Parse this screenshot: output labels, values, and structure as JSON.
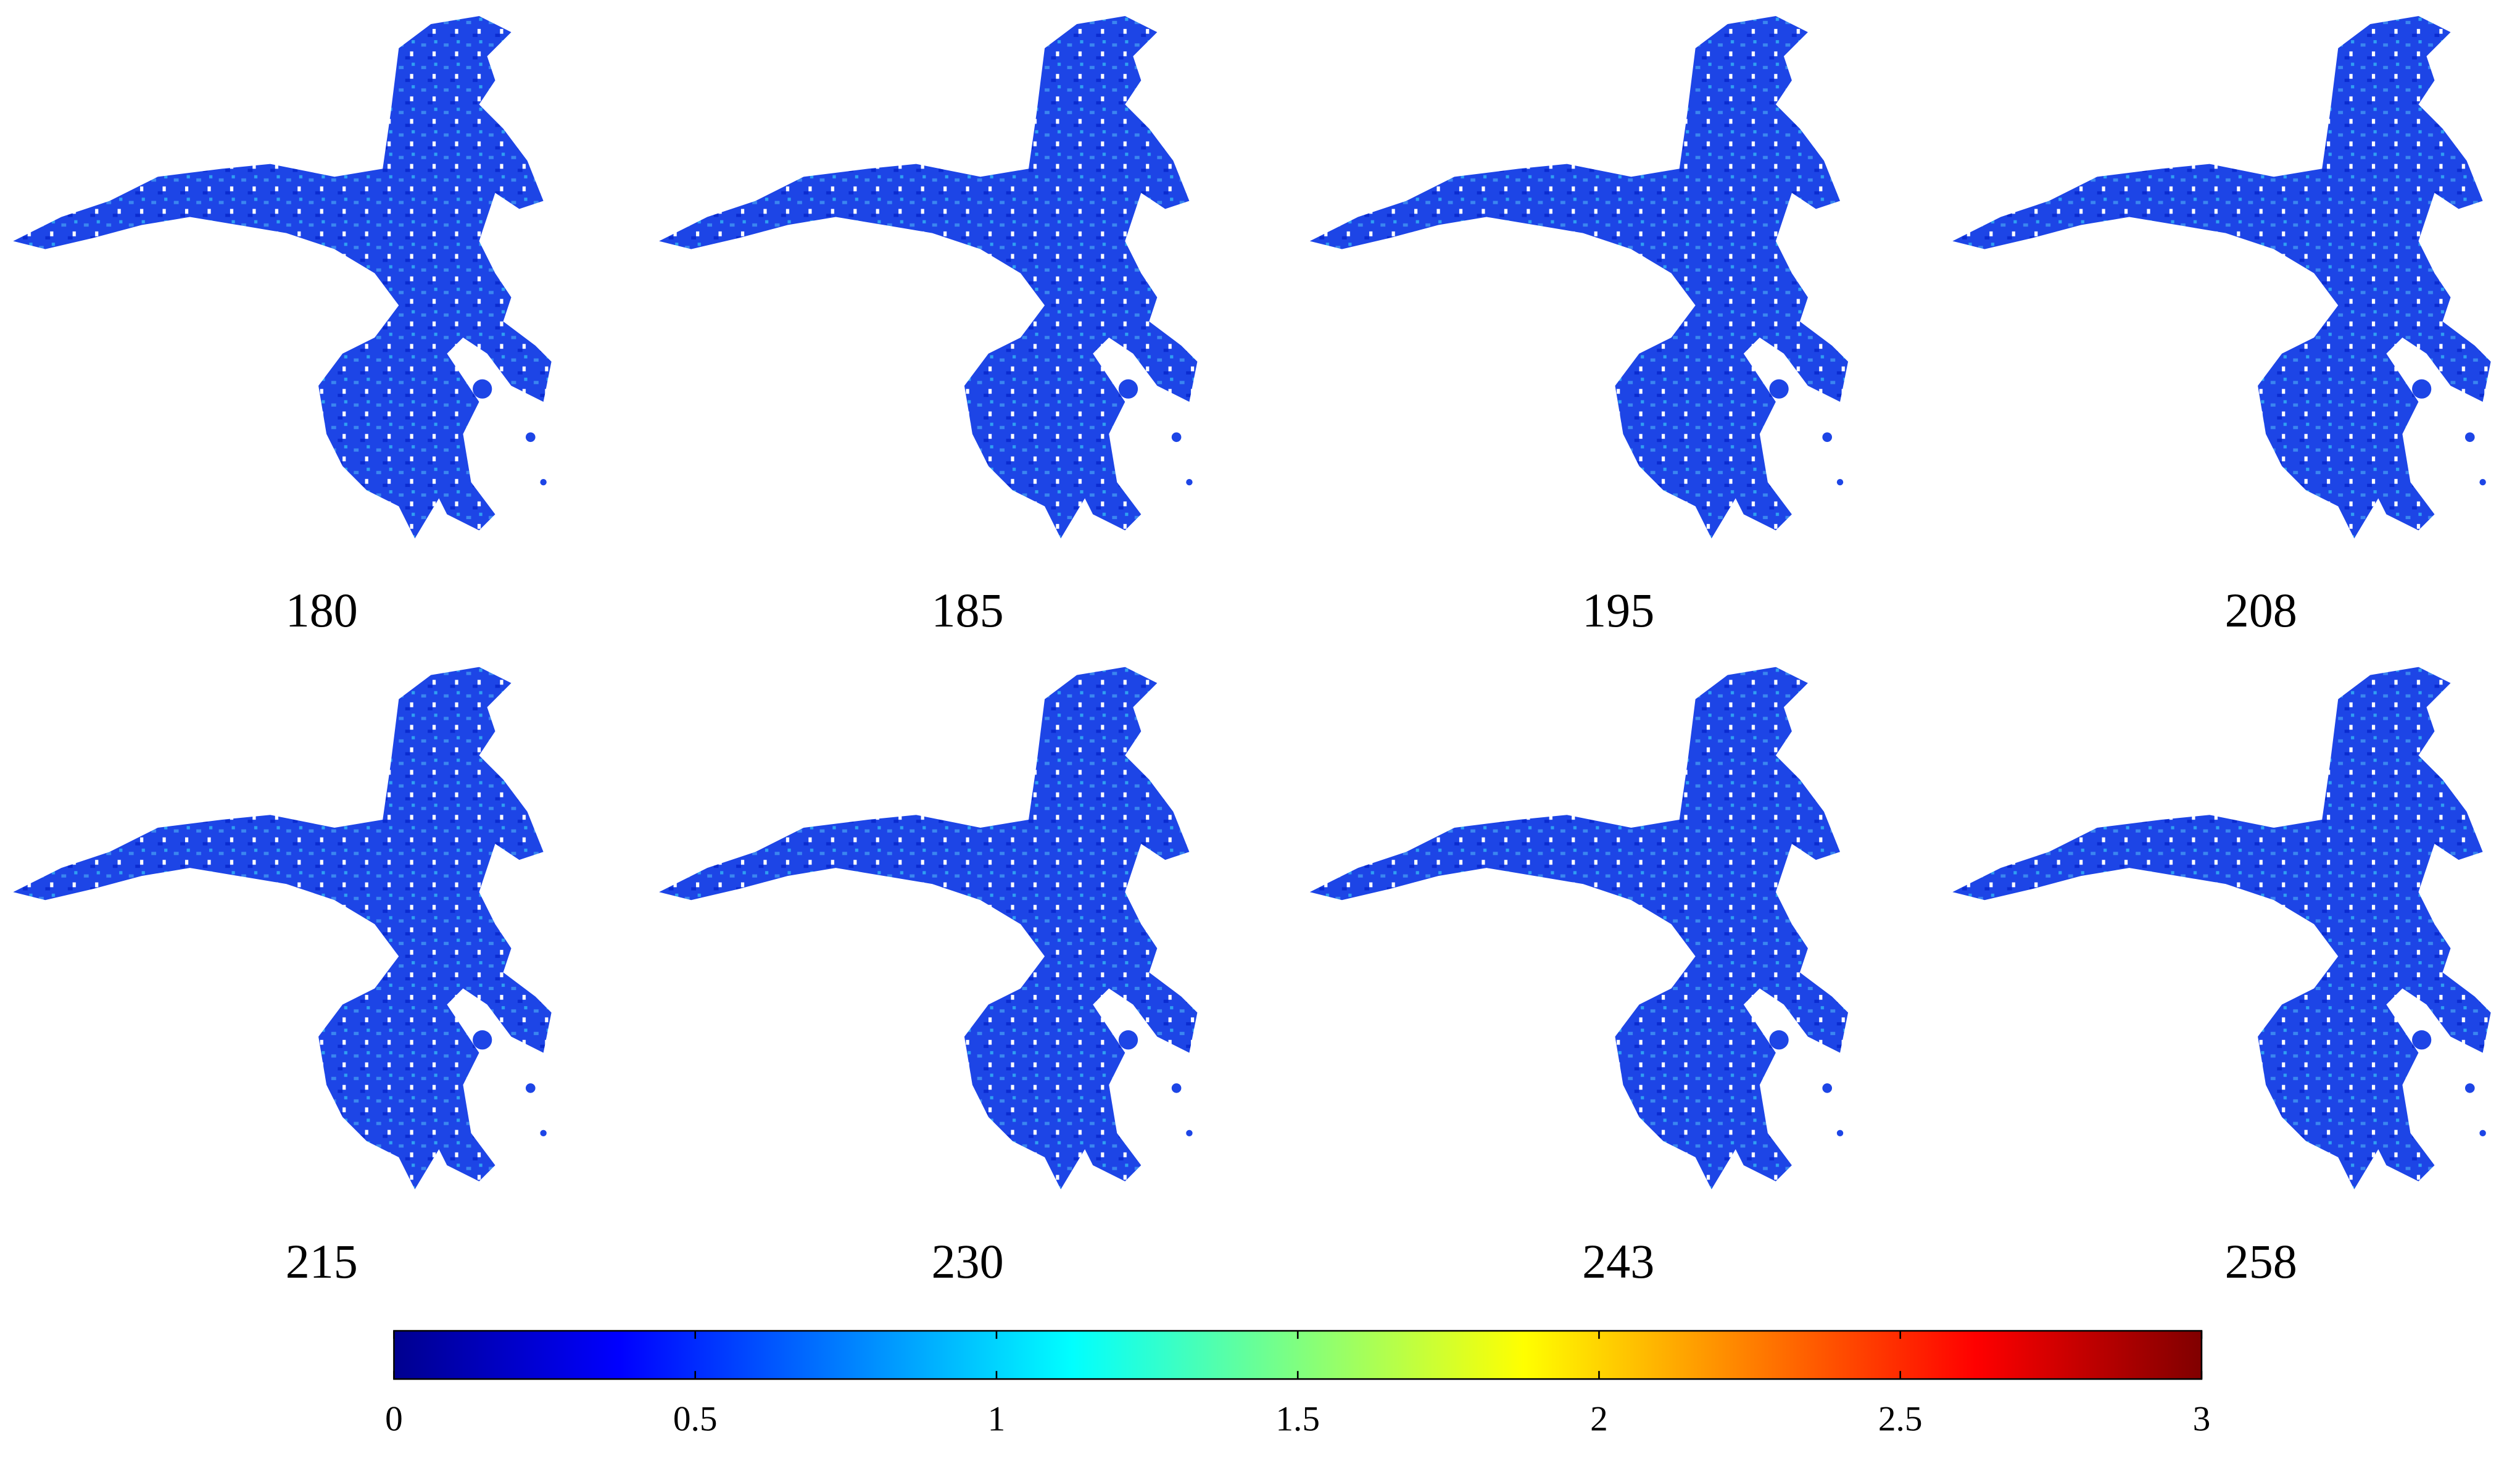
{
  "panels": [
    {
      "label": "180"
    },
    {
      "label": "185"
    },
    {
      "label": "195"
    },
    {
      "label": "208"
    },
    {
      "label": "215"
    },
    {
      "label": "230"
    },
    {
      "label": "243"
    },
    {
      "label": "258"
    }
  ],
  "colorbar": {
    "lim": [
      0,
      3
    ],
    "ticks": [
      0,
      0.5,
      1,
      1.5,
      2,
      2.5,
      3
    ],
    "colormap": "jet"
  }
}
